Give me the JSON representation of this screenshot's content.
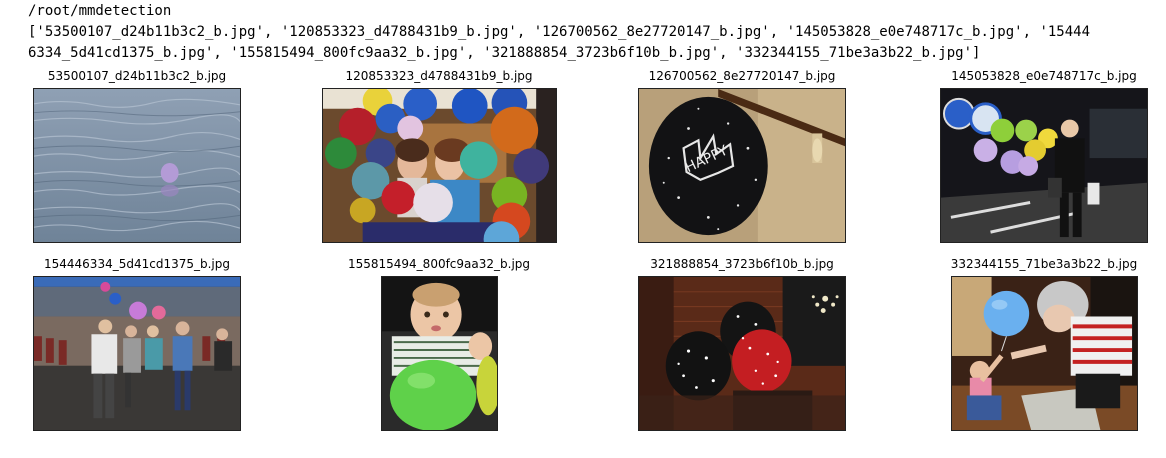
{
  "output": {
    "cwd": "/root/mmdetection",
    "list_line1": "['53500107_d24b11b3c2_b.jpg', '120853323_d4788431b9_b.jpg', '126700562_8e27720147_b.jpg', '145053828_e0e748717c_b.jpg', '15444",
    "list_line2": "6334_5d41cd1375_b.jpg', '155815494_800fc9aa32_b.jpg', '321888854_3723b6f10b_b.jpg', '332344155_71be3a3b22_b.jpg']"
  },
  "images": [
    {
      "title": "53500107_d24b11b3c2_b.jpg",
      "scene": "balloon-on-water"
    },
    {
      "title": "120853323_d4788431b9_b.jpg",
      "scene": "girls-with-balloons"
    },
    {
      "title": "126700562_8e27720147_b.jpg",
      "scene": "black-balloon-wall"
    },
    {
      "title": "145053828_e0e748717c_b.jpg",
      "scene": "night-street-balloons"
    },
    {
      "title": "154446334_5d41cd1375_b.jpg",
      "scene": "party-room-dancing"
    },
    {
      "title": "155815494_800fc9aa32_b.jpg",
      "scene": "baby-green-balloon"
    },
    {
      "title": "321888854_3723b6f10b_b.jpg",
      "scene": "black-red-balloons"
    },
    {
      "title": "332344155_71be3a3b22_b.jpg",
      "scene": "child-grandma-blue-balloon"
    }
  ]
}
